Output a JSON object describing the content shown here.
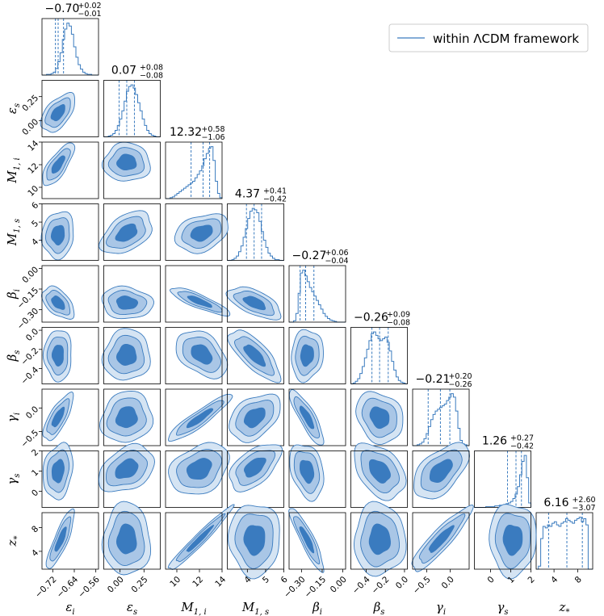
{
  "chart_data": {
    "type": "corner",
    "legend": {
      "label": "within ΛCDM framework",
      "color": "#3a7bbf"
    },
    "colors": {
      "line": "#3a7bbf",
      "fill_inner": "#3a7bbf",
      "fill_outer": "#a9c6e6",
      "fill_outermost": "#d5e4f3"
    },
    "parameters": [
      {
        "name": "eps_i",
        "label": "ε",
        "sub": "i",
        "range": [
          -0.76,
          -0.55
        ],
        "ticks": [
          -0.72,
          -0.64,
          -0.56
        ],
        "tick_labels": [
          "−0.72",
          "−0.64",
          "−0.56"
        ],
        "median": -0.7,
        "plus": "+0.02",
        "minus": "−0.01",
        "title_value": "−0.70"
      },
      {
        "name": "eps_s",
        "label": "ε",
        "sub": "s",
        "range": [
          -0.17,
          0.42
        ],
        "ticks": [
          0.0,
          0.25
        ],
        "tick_labels": [
          "0.00",
          "0.25"
        ],
        "median": 0.07,
        "plus": "+0.08",
        "minus": "−0.08",
        "title_value": "0.07"
      },
      {
        "name": "M1_i",
        "label": "M",
        "sub": "1, i",
        "range": [
          9.0,
          14.0
        ],
        "ticks": [
          10,
          12,
          14
        ],
        "tick_labels": [
          "10",
          "12",
          "14"
        ],
        "median": 12.32,
        "plus": "+0.58",
        "minus": "−1.06",
        "title_value": "12.32"
      },
      {
        "name": "M1_s",
        "label": "M",
        "sub": "1, s",
        "range": [
          2.9,
          6.0
        ],
        "ticks": [
          4,
          5,
          6
        ],
        "tick_labels": [
          "4",
          "5",
          "6"
        ],
        "median": 4.37,
        "plus": "+0.41",
        "minus": "−0.42",
        "title_value": "4.37"
      },
      {
        "name": "beta_i",
        "label": "β",
        "sub": "i",
        "range": [
          -0.39,
          0.02
        ],
        "ticks": [
          -0.3,
          -0.15,
          0.0
        ],
        "tick_labels": [
          "−0.30",
          "−0.15",
          "0.00"
        ],
        "median": -0.27,
        "plus": "+0.06",
        "minus": "−0.04",
        "title_value": "−0.27"
      },
      {
        "name": "beta_s",
        "label": "β",
        "sub": "s",
        "range": [
          -0.56,
          0.03
        ],
        "ticks": [
          -0.4,
          -0.2,
          0.0
        ],
        "tick_labels": [
          "−0.4",
          "−0.2",
          "0.0"
        ],
        "median": -0.26,
        "plus": "+0.09",
        "minus": "−0.08",
        "title_value": "−0.26"
      },
      {
        "name": "gamma_i",
        "label": "γ",
        "sub": "i",
        "range": [
          -0.8,
          0.4
        ],
        "ticks": [
          -0.5,
          0.0
        ],
        "tick_labels": [
          "−0.5",
          "0.0"
        ],
        "median": -0.21,
        "plus": "+0.20",
        "minus": "−0.26",
        "title_value": "−0.21"
      },
      {
        "name": "gamma_s",
        "label": "γ",
        "sub": "s",
        "range": [
          -0.8,
          2.0
        ],
        "ticks": [
          0,
          1,
          2
        ],
        "tick_labels": [
          "0",
          "1",
          "2"
        ],
        "median": 1.26,
        "plus": "+0.27",
        "minus": "−0.42",
        "title_value": "1.26"
      },
      {
        "name": "z_star",
        "label": "z",
        "sub": "*",
        "range": [
          1.0,
          10.5
        ],
        "ticks": [
          4,
          8
        ],
        "tick_labels": [
          "4",
          "8"
        ],
        "median": 6.16,
        "plus": "+2.60",
        "minus": "−3.07",
        "title_value": "6.16"
      }
    ],
    "ytick_override": {
      "eps_s": {
        "ticks": [
          0.0,
          0.25
        ],
        "tick_labels": [
          "0.00",
          "0.25"
        ]
      },
      "M1_i": {
        "ticks": [
          10,
          12,
          14
        ],
        "tick_labels": [
          "10",
          "12",
          "14"
        ]
      },
      "M1_s": {
        "ticks": [
          4,
          5,
          6
        ],
        "tick_labels": [
          "4",
          "5",
          "6"
        ]
      },
      "beta_i": {
        "ticks": [
          -0.3,
          -0.15,
          0.0
        ],
        "tick_labels": [
          "−0.30",
          "−0.15",
          "0.00"
        ]
      },
      "beta_s": {
        "ticks": [
          -0.4,
          -0.2,
          0.0
        ],
        "tick_labels": [
          "−0.4",
          "−0.2",
          "0.0"
        ]
      },
      "gamma_i": {
        "ticks": [
          -0.5,
          0.0
        ],
        "tick_labels": [
          "−0.5",
          "0.0"
        ]
      },
      "gamma_s": {
        "ticks": [
          0,
          1,
          2
        ],
        "tick_labels": [
          "0",
          "1",
          "2"
        ]
      },
      "z_star": {
        "ticks": [
          4,
          8
        ],
        "tick_labels": [
          "4",
          "8"
        ]
      }
    },
    "quantiles": [
      [
        -0.71,
        -0.68
      ],
      [
        -0.01,
        0.15
      ],
      [
        11.26,
        12.9
      ],
      [
        3.95,
        4.78
      ],
      [
        -0.31,
        -0.21
      ],
      [
        -0.34,
        -0.17
      ],
      [
        -0.47,
        -0.01
      ],
      [
        0.84,
        1.53
      ],
      [
        3.09,
        8.76
      ]
    ],
    "histograms": [
      [
        0,
        0,
        1,
        1,
        2,
        4,
        9,
        18,
        30,
        48,
        62,
        70,
        66,
        55,
        38,
        24,
        14,
        8,
        4,
        2,
        1,
        1,
        0,
        0,
        0
      ],
      [
        0,
        0,
        1,
        2,
        4,
        8,
        14,
        22,
        32,
        44,
        56,
        62,
        64,
        60,
        52,
        42,
        32,
        22,
        14,
        8,
        4,
        2,
        1,
        0,
        0
      ],
      [
        0,
        0,
        1,
        2,
        4,
        6,
        8,
        10,
        12,
        14,
        16,
        18,
        20,
        24,
        28,
        32,
        38,
        46,
        52,
        58,
        60,
        44,
        20,
        6,
        1
      ],
      [
        0,
        0,
        1,
        3,
        6,
        12,
        20,
        32,
        44,
        58,
        68,
        72,
        70,
        66,
        54,
        40,
        28,
        18,
        10,
        6,
        3,
        1,
        1,
        0,
        0
      ],
      [
        0,
        0,
        2,
        12,
        40,
        68,
        72,
        64,
        56,
        48,
        42,
        36,
        30,
        24,
        18,
        12,
        8,
        5,
        3,
        2,
        1,
        0,
        0,
        0,
        0
      ],
      [
        0,
        1,
        3,
        6,
        12,
        20,
        30,
        40,
        50,
        58,
        60,
        56,
        52,
        50,
        52,
        54,
        48,
        38,
        26,
        16,
        8,
        4,
        2,
        1,
        0
      ],
      [
        0,
        0,
        1,
        2,
        4,
        8,
        14,
        22,
        30,
        36,
        40,
        42,
        44,
        46,
        48,
        52,
        56,
        60,
        56,
        40,
        20,
        6,
        2,
        1,
        0
      ],
      [
        0,
        0,
        0,
        0,
        0,
        1,
        1,
        1,
        1,
        2,
        2,
        3,
        3,
        4,
        5,
        6,
        8,
        12,
        18,
        28,
        44,
        62,
        70,
        40,
        6
      ],
      [
        0,
        4,
        40,
        56,
        54,
        58,
        56,
        60,
        62,
        58,
        56,
        60,
        62,
        66,
        64,
        62,
        60,
        64,
        66,
        68,
        62,
        66,
        58,
        0,
        0
      ]
    ],
    "blob_shapes": {
      "comment": "Per lower-triangle panel [row, col]: center (data units), half-widths in units of each axis range (sx, sy), correlation rho.",
      "panels": [
        {
          "r": 1,
          "c": 0,
          "cx": -0.7,
          "cy": 0.08,
          "sx": 0.16,
          "sy": 0.18,
          "rho": 0.55
        },
        {
          "r": 2,
          "c": 0,
          "cx": -0.7,
          "cy": 12.0,
          "sx": 0.15,
          "sy": 0.2,
          "rho": 0.75
        },
        {
          "r": 2,
          "c": 1,
          "cx": 0.07,
          "cy": 12.2,
          "sx": 0.22,
          "sy": 0.18,
          "rho": 0.0
        },
        {
          "r": 3,
          "c": 0,
          "cx": -0.7,
          "cy": 4.3,
          "sx": 0.15,
          "sy": 0.22,
          "rho": 0.1
        },
        {
          "r": 3,
          "c": 1,
          "cx": 0.07,
          "cy": 4.4,
          "sx": 0.24,
          "sy": 0.2,
          "rho": 0.45
        },
        {
          "r": 3,
          "c": 2,
          "cx": 12.2,
          "cy": 4.4,
          "sx": 0.25,
          "sy": 0.18,
          "rho": 0.3
        },
        {
          "r": 4,
          "c": 0,
          "cx": -0.7,
          "cy": -0.25,
          "sx": 0.15,
          "sy": 0.15,
          "rho": -0.5
        },
        {
          "r": 4,
          "c": 1,
          "cx": 0.07,
          "cy": -0.25,
          "sx": 0.24,
          "sy": 0.15,
          "rho": -0.1
        },
        {
          "r": 4,
          "c": 2,
          "cx": 12.0,
          "cy": -0.24,
          "sx": 0.28,
          "sy": 0.13,
          "rho": -0.85
        },
        {
          "r": 4,
          "c": 3,
          "cx": 4.4,
          "cy": -0.25,
          "sx": 0.25,
          "sy": 0.15,
          "rho": -0.6
        },
        {
          "r": 5,
          "c": 0,
          "cx": -0.7,
          "cy": -0.26,
          "sx": 0.13,
          "sy": 0.24,
          "rho": 0.0
        },
        {
          "r": 5,
          "c": 1,
          "cx": 0.07,
          "cy": -0.26,
          "sx": 0.22,
          "sy": 0.24,
          "rho": 0.05
        },
        {
          "r": 5,
          "c": 2,
          "cx": 12.2,
          "cy": -0.25,
          "sx": 0.24,
          "sy": 0.22,
          "rho": -0.4
        },
        {
          "r": 5,
          "c": 3,
          "cx": 4.4,
          "cy": -0.26,
          "sx": 0.24,
          "sy": 0.24,
          "rho": -0.75
        },
        {
          "r": 5,
          "c": 4,
          "cx": -0.26,
          "cy": -0.26,
          "sx": 0.15,
          "sy": 0.24,
          "rho": 0.1
        },
        {
          "r": 6,
          "c": 0,
          "cx": -0.7,
          "cy": -0.2,
          "sx": 0.14,
          "sy": 0.22,
          "rho": 0.75
        },
        {
          "r": 6,
          "c": 1,
          "cx": 0.07,
          "cy": -0.2,
          "sx": 0.24,
          "sy": 0.24,
          "rho": 0.1
        },
        {
          "r": 6,
          "c": 2,
          "cx": 12.0,
          "cy": -0.22,
          "sx": 0.3,
          "sy": 0.22,
          "rho": 0.92
        },
        {
          "r": 6,
          "c": 3,
          "cx": 4.4,
          "cy": -0.2,
          "sx": 0.24,
          "sy": 0.22,
          "rho": 0.4
        },
        {
          "r": 6,
          "c": 4,
          "cx": -0.26,
          "cy": -0.2,
          "sx": 0.16,
          "sy": 0.26,
          "rho": -0.85
        },
        {
          "r": 6,
          "c": 5,
          "cx": -0.26,
          "cy": -0.2,
          "sx": 0.22,
          "sy": 0.24,
          "rho": -0.2
        },
        {
          "r": 7,
          "c": 0,
          "cx": -0.7,
          "cy": 1.0,
          "sx": 0.14,
          "sy": 0.26,
          "rho": 0.2
        },
        {
          "r": 7,
          "c": 1,
          "cx": 0.07,
          "cy": 1.1,
          "sx": 0.26,
          "sy": 0.22,
          "rho": 0.35
        },
        {
          "r": 7,
          "c": 2,
          "cx": 12.0,
          "cy": 1.1,
          "sx": 0.28,
          "sy": 0.24,
          "rho": 0.3
        },
        {
          "r": 7,
          "c": 3,
          "cx": 4.4,
          "cy": 1.2,
          "sx": 0.24,
          "sy": 0.22,
          "rho": 0.55
        },
        {
          "r": 7,
          "c": 4,
          "cx": -0.26,
          "cy": 1.0,
          "sx": 0.16,
          "sy": 0.26,
          "rho": -0.3
        },
        {
          "r": 7,
          "c": 5,
          "cx": -0.26,
          "cy": 1.0,
          "sx": 0.24,
          "sy": 0.26,
          "rho": -0.4
        },
        {
          "r": 7,
          "c": 6,
          "cx": -0.2,
          "cy": 1.0,
          "sx": 0.26,
          "sy": 0.26,
          "rho": 0.55
        },
        {
          "r": 8,
          "c": 0,
          "cx": -0.69,
          "cy": 6.0,
          "sx": 0.13,
          "sy": 0.28,
          "rho": 0.85
        },
        {
          "r": 8,
          "c": 1,
          "cx": 0.07,
          "cy": 6.0,
          "sx": 0.22,
          "sy": 0.34,
          "rho": 0.0
        },
        {
          "r": 8,
          "c": 2,
          "cx": 12.0,
          "cy": 6.0,
          "sx": 0.3,
          "sy": 0.3,
          "rho": 0.97
        },
        {
          "r": 8,
          "c": 3,
          "cx": 4.4,
          "cy": 6.0,
          "sx": 0.24,
          "sy": 0.34,
          "rho": 0.0
        },
        {
          "r": 8,
          "c": 4,
          "cx": -0.26,
          "cy": 6.0,
          "sx": 0.16,
          "sy": 0.3,
          "rho": -0.9
        },
        {
          "r": 8,
          "c": 5,
          "cx": -0.26,
          "cy": 6.0,
          "sx": 0.24,
          "sy": 0.34,
          "rho": 0.0
        },
        {
          "r": 8,
          "c": 6,
          "cx": -0.2,
          "cy": 6.0,
          "sx": 0.28,
          "sy": 0.3,
          "rho": 0.9
        },
        {
          "r": 8,
          "c": 7,
          "cx": 1.1,
          "cy": 6.0,
          "sx": 0.22,
          "sy": 0.34,
          "rho": 0.0
        }
      ]
    }
  }
}
